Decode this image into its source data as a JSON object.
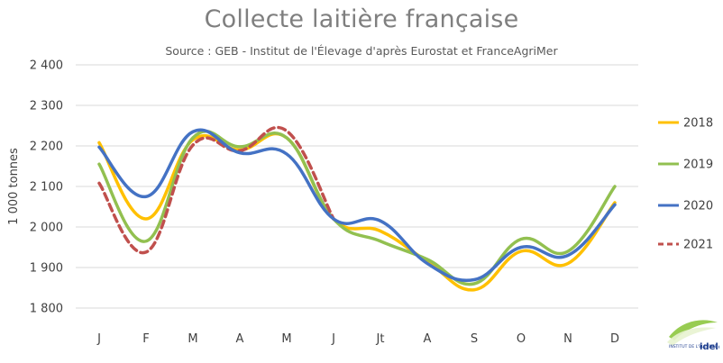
{
  "chart_data": {
    "type": "line",
    "title": "Collecte laitière française",
    "subtitle": "Source : GEB - Institut de l'Élevage d'après Eurostat et FranceAgriMer",
    "ylabel": "1 000 tonnes",
    "xlabel": "",
    "categories": [
      "J",
      "F",
      "M",
      "A",
      "M",
      "J",
      "Jt",
      "A",
      "S",
      "O",
      "N",
      "D"
    ],
    "ylim": [
      1800,
      2400
    ],
    "yticks": [
      1800,
      1900,
      2000,
      2100,
      2200,
      2300,
      2400
    ],
    "ytick_labels": [
      "1 800",
      "1 900",
      "2 000",
      "2 100",
      "2 200",
      "2 300",
      "2 400"
    ],
    "grid": "horizontal",
    "legend_position": "right",
    "series": [
      {
        "name": "2018",
        "color": "#ffc000",
        "dash": false,
        "values": [
          2208,
          2020,
          2215,
          2190,
          2220,
          2020,
          1990,
          1915,
          1845,
          1940,
          1910,
          2060
        ]
      },
      {
        "name": "2019",
        "color": "#92c050",
        "dash": false,
        "values": [
          2155,
          1965,
          2220,
          2198,
          2220,
          2020,
          1965,
          1920,
          1860,
          1970,
          1940,
          2100
        ]
      },
      {
        "name": "2020",
        "color": "#4472c4",
        "dash": false,
        "values": [
          2197,
          2075,
          2235,
          2183,
          2180,
          2020,
          2015,
          1910,
          1870,
          1950,
          1930,
          2055
        ]
      },
      {
        "name": "2021",
        "color": "#c0504d",
        "dash": true,
        "values": [
          2108,
          1938,
          2202,
          2188,
          2237,
          2020,
          null,
          null,
          null,
          null,
          null,
          null
        ]
      }
    ]
  },
  "logo": {
    "text_top": "INSTITUT DE L'ÉLEVAGE",
    "text_brand": "idele"
  }
}
